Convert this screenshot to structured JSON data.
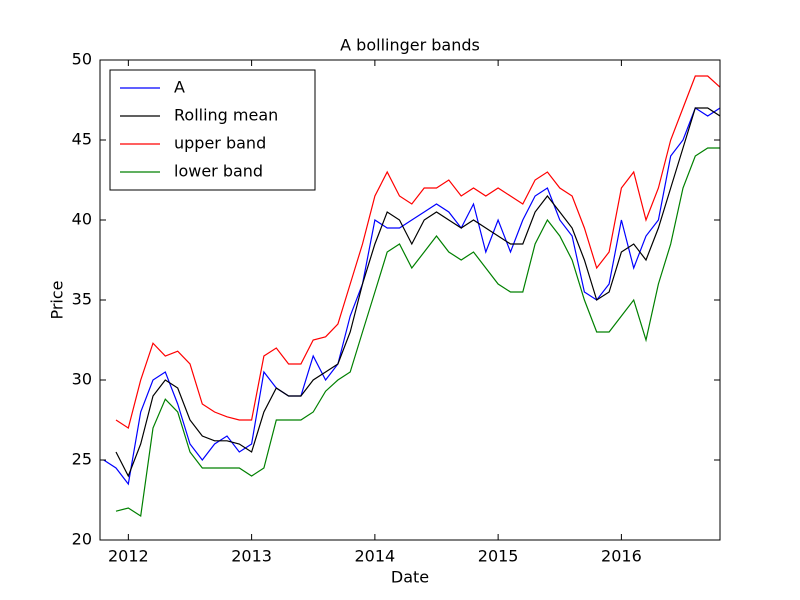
{
  "chart_data": {
    "type": "line",
    "title": "A bollinger bands",
    "x_label": "Date",
    "y_label": "Price",
    "x": [
      2011.8,
      2011.9,
      2012.0,
      2012.1,
      2012.2,
      2012.3,
      2012.4,
      2012.5,
      2012.6,
      2012.7,
      2012.8,
      2012.9,
      2013.0,
      2013.1,
      2013.2,
      2013.3,
      2013.4,
      2013.5,
      2013.6,
      2013.7,
      2013.8,
      2013.9,
      2014.0,
      2014.1,
      2014.2,
      2014.3,
      2014.4,
      2014.5,
      2014.6,
      2014.7,
      2014.8,
      2014.9,
      2015.0,
      2015.1,
      2015.2,
      2015.3,
      2015.4,
      2015.5,
      2015.6,
      2015.7,
      2015.8,
      2015.9,
      2016.0,
      2016.1,
      2016.2,
      2016.3,
      2016.4,
      2016.5,
      2016.6,
      2016.7,
      2016.8
    ],
    "series": [
      {
        "name": "A",
        "color": "#0000ff",
        "values": [
          25,
          24.5,
          23.5,
          28,
          30,
          30.5,
          28.5,
          26,
          25,
          26,
          26.5,
          25.5,
          26,
          30.5,
          29.5,
          29,
          29,
          31.5,
          30,
          31,
          34,
          36,
          40,
          39.5,
          39.5,
          40,
          40.5,
          41,
          40.5,
          39.5,
          41,
          38,
          40,
          38,
          40,
          41.5,
          42,
          40,
          39,
          35.5,
          35,
          36,
          40,
          37,
          39,
          40,
          44,
          45,
          47,
          46.5,
          47
        ]
      },
      {
        "name": "Rolling mean",
        "color": "#000000",
        "values": [
          null,
          25.5,
          24,
          26,
          29,
          30,
          29.5,
          27.5,
          26.5,
          26.2,
          26.2,
          26,
          25.5,
          28,
          29.5,
          29,
          29,
          30,
          30.5,
          31,
          33,
          36,
          38.5,
          40.5,
          40,
          38.5,
          40,
          40.5,
          40,
          39.5,
          40,
          39.5,
          39,
          38.5,
          38.5,
          40.5,
          41.5,
          40.5,
          39.5,
          37.5,
          35,
          35.5,
          38,
          38.5,
          37.5,
          39.5,
          42,
          44.5,
          47,
          47,
          46.5
        ]
      },
      {
        "name": "upper band",
        "color": "#ff0000",
        "values": [
          null,
          27.5,
          27,
          30,
          32.3,
          31.5,
          31.8,
          31,
          28.5,
          28,
          27.7,
          27.5,
          27.5,
          31.5,
          32,
          31,
          31,
          32.5,
          32.7,
          33.5,
          36,
          38.5,
          41.5,
          43,
          41.5,
          41,
          42,
          42,
          42.5,
          41.5,
          42,
          41.5,
          42,
          41.5,
          41,
          42.5,
          43,
          42,
          41.5,
          39.5,
          37,
          38,
          42,
          43,
          40,
          42,
          45,
          47,
          49,
          49,
          48.3
        ]
      },
      {
        "name": "lower band",
        "color": "#008000",
        "values": [
          null,
          21.8,
          22,
          21.5,
          27,
          28.8,
          28,
          25.5,
          24.5,
          24.5,
          24.5,
          24.5,
          24,
          24.5,
          27.5,
          27.5,
          27.5,
          28,
          29.3,
          30,
          30.5,
          33,
          35.5,
          38,
          38.5,
          37,
          38,
          39,
          38,
          37.5,
          38,
          37,
          36,
          35.5,
          35.5,
          38.5,
          40,
          39,
          37.5,
          35,
          33,
          33,
          34,
          35,
          32.5,
          36,
          38.5,
          42,
          44,
          44.5,
          44.5
        ]
      }
    ],
    "xlim": [
      2011.77,
      2016.8
    ],
    "xticks": [
      2012,
      2013,
      2014,
      2015,
      2016
    ],
    "ylim": [
      20,
      50
    ],
    "yticks": [
      20,
      25,
      30,
      35,
      40,
      45,
      50
    ],
    "grid": false,
    "legend": "upper left"
  }
}
